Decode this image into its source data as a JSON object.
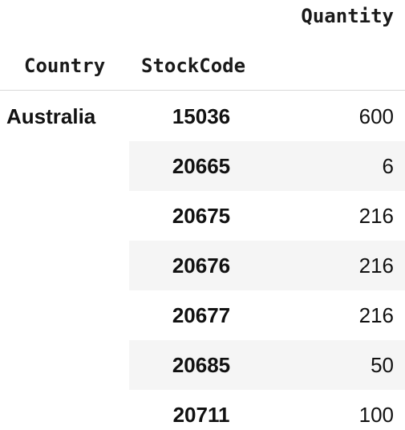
{
  "table": {
    "columns": {
      "value_header": "Quantity",
      "index_headers": [
        "Country",
        "StockCode"
      ]
    },
    "country": "Australia",
    "rows": [
      {
        "stock_code": "15036",
        "quantity": "600"
      },
      {
        "stock_code": "20665",
        "quantity": "6"
      },
      {
        "stock_code": "20675",
        "quantity": "216"
      },
      {
        "stock_code": "20676",
        "quantity": "216"
      },
      {
        "stock_code": "20677",
        "quantity": "216"
      },
      {
        "stock_code": "20685",
        "quantity": "50"
      },
      {
        "stock_code": "20711",
        "quantity": "100"
      }
    ],
    "colors": {
      "stripe": "#f5f5f5",
      "rule": "#d8d8d8",
      "text": "#111111"
    }
  }
}
